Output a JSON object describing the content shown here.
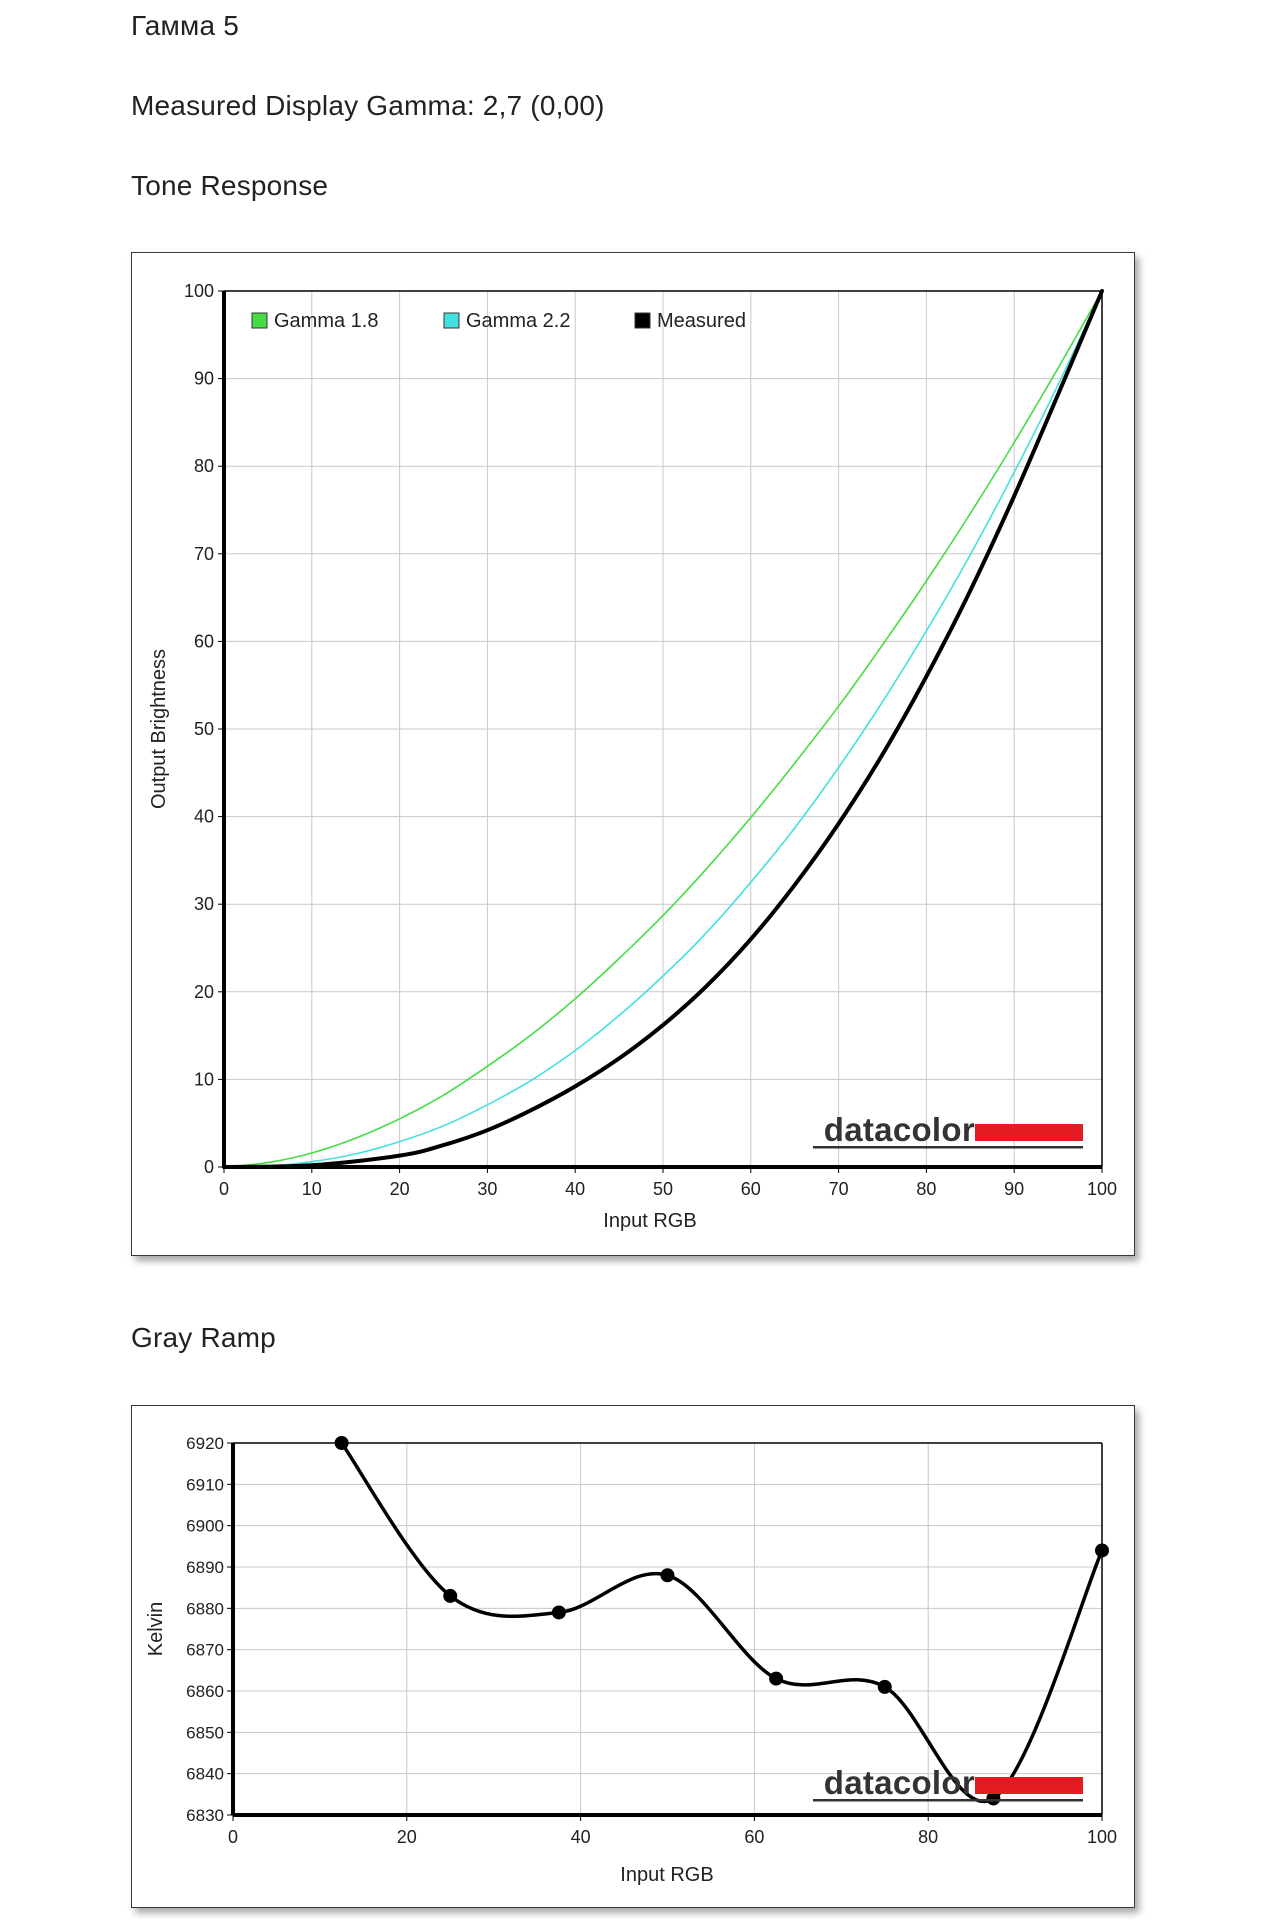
{
  "page": {
    "title": "Гамма 5",
    "measured_gamma": "Measured Display Gamma: 2,7 (0,00)",
    "tone_section_title": "Tone Response",
    "gray_section_title": "Gray Ramp"
  },
  "brand": {
    "name": "datacolor",
    "accent_color": "#e31b23"
  },
  "colors": {
    "gamma18": "#44dd44",
    "gamma22": "#44e0e0",
    "measured": "#000000",
    "grid": "#c8c8c8"
  },
  "chart_data": [
    {
      "type": "line",
      "xlabel": "Input RGB",
      "ylabel": "Output Brightness",
      "xlim": [
        0,
        100
      ],
      "ylim": [
        0,
        100
      ],
      "xticks": [
        0,
        10,
        20,
        30,
        40,
        50,
        60,
        70,
        80,
        90,
        100
      ],
      "yticks": [
        0,
        10,
        20,
        30,
        40,
        50,
        60,
        70,
        80,
        90,
        100
      ],
      "grid": true,
      "legend_position": "top-left",
      "series": [
        {
          "name": "Gamma 1.8",
          "color": "#44dd44",
          "x": [
            0,
            5,
            10,
            15,
            20,
            25,
            30,
            35,
            40,
            45,
            50,
            55,
            60,
            65,
            70,
            75,
            80,
            85,
            90,
            95,
            100
          ],
          "y": [
            0,
            0.5,
            1.6,
            3.3,
            5.5,
            8.2,
            11.5,
            15.1,
            19.2,
            23.8,
            28.7,
            34.1,
            39.9,
            46.1,
            52.6,
            59.6,
            66.9,
            74.6,
            82.7,
            91.2,
            100
          ]
        },
        {
          "name": "Gamma 2.2",
          "color": "#44e0e0",
          "x": [
            0,
            5,
            10,
            15,
            20,
            25,
            30,
            35,
            40,
            45,
            50,
            55,
            60,
            65,
            70,
            75,
            80,
            85,
            90,
            95,
            100
          ],
          "y": [
            0,
            0.1,
            0.6,
            1.5,
            2.9,
            4.7,
            7.1,
            9.9,
            13.3,
            17.3,
            21.8,
            26.8,
            32.5,
            38.7,
            45.6,
            53.1,
            61.2,
            69.9,
            79.3,
            89.3,
            100
          ]
        },
        {
          "name": "Measured",
          "color": "#000000",
          "x": [
            0,
            10,
            20,
            25,
            30,
            35,
            40,
            45,
            50,
            55,
            60,
            65,
            70,
            75,
            80,
            85,
            90,
            95,
            100
          ],
          "y": [
            0,
            0.2,
            1.3,
            2.5,
            4.2,
            6.5,
            9.2,
            12.4,
            16.2,
            20.7,
            26.0,
            32.2,
            39.2,
            47.1,
            56.0,
            65.8,
            76.6,
            88.2,
            100
          ]
        }
      ]
    },
    {
      "type": "line",
      "xlabel": "Input RGB",
      "ylabel": "Kelvin",
      "xlim": [
        0,
        100
      ],
      "ylim": [
        6830,
        6920
      ],
      "xticks": [
        0,
        20,
        40,
        60,
        80,
        100
      ],
      "yticks": [
        6830,
        6840,
        6850,
        6860,
        6870,
        6880,
        6890,
        6900,
        6910,
        6920
      ],
      "grid": true,
      "series": [
        {
          "color": "#000000",
          "x": [
            12.5,
            25,
            37.5,
            50,
            62.5,
            75,
            87.5,
            100
          ],
          "y": [
            6920,
            6883,
            6879,
            6888,
            6863,
            6861,
            6834,
            6894
          ]
        }
      ]
    }
  ]
}
